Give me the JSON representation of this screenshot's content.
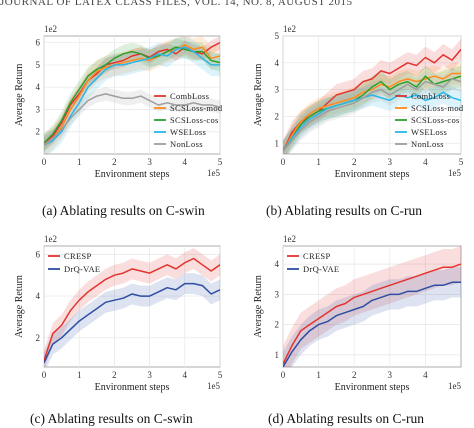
{
  "header": "JOURNAL OF LATEX CLASS FILES, VOL. 14, NO. 8, AUGUST 2015",
  "colors": {
    "CombLoss": "#e3342f",
    "SCSLoss-mod": "#ff8a1f",
    "SCSLoss-cos": "#2ca02c",
    "WSELoss": "#29b6e8",
    "NonLoss": "#9e9e9e",
    "CRESP": "#e3342f",
    "DrQ-VAE": "#2d4ea3",
    "grid": "#e6e6e6",
    "plot_bg": "#eaeaf2"
  },
  "chart_data": [
    {
      "id": "a",
      "type": "line",
      "caption": "(a)  Ablating results on C-swin",
      "xlabel": "Environment steps",
      "ylabel": "Average Return",
      "x_multiplier": "1e5",
      "y_multiplier": "1e2",
      "xlim": [
        0,
        5
      ],
      "ylim": [
        1,
        6.3
      ],
      "xticks": [
        "0",
        "1",
        "2",
        "3",
        "4",
        "5"
      ],
      "yticks": [
        "2",
        "3",
        "4",
        "5",
        "6"
      ],
      "xtick_values": [
        0,
        1,
        2,
        3,
        4,
        5
      ],
      "ytick_values": [
        2,
        3,
        4,
        5,
        6
      ],
      "legend_position": "right",
      "x": [
        0,
        0.25,
        0.5,
        0.75,
        1.0,
        1.25,
        1.5,
        1.75,
        2.0,
        2.25,
        2.5,
        2.75,
        3.0,
        3.25,
        3.5,
        3.75,
        4.0,
        4.25,
        4.5,
        4.75,
        5.0
      ],
      "series": [
        {
          "name": "CombLoss",
          "values": [
            1.5,
            1.8,
            2.4,
            3.2,
            3.7,
            4.3,
            4.6,
            5.0,
            5.1,
            5.2,
            5.4,
            5.5,
            5.35,
            5.6,
            5.7,
            5.5,
            5.8,
            5.6,
            5.5,
            5.8,
            6.0
          ],
          "band": 0.3
        },
        {
          "name": "SCSLoss-mod",
          "values": [
            1.4,
            1.7,
            2.2,
            3.0,
            3.6,
            4.3,
            4.7,
            4.9,
            5.0,
            5.1,
            5.2,
            5.3,
            5.2,
            5.4,
            5.6,
            5.7,
            5.9,
            5.7,
            5.8,
            5.3,
            5.4
          ],
          "band": 0.5
        },
        {
          "name": "SCSLoss-cos",
          "values": [
            1.5,
            1.9,
            2.5,
            3.3,
            3.9,
            4.5,
            4.8,
            5.0,
            5.3,
            5.5,
            5.6,
            5.5,
            5.3,
            5.4,
            5.6,
            5.8,
            5.7,
            5.6,
            5.6,
            5.2,
            5.1
          ],
          "band": 0.4
        },
        {
          "name": "WSELoss",
          "values": [
            1.4,
            1.6,
            2.0,
            2.7,
            3.3,
            4.0,
            4.4,
            4.8,
            5.0,
            5.0,
            5.1,
            5.2,
            5.3,
            5.5,
            5.4,
            5.7,
            5.8,
            5.6,
            5.3,
            5.0,
            5.0
          ],
          "band": 0.5
        },
        {
          "name": "NonLoss",
          "values": [
            1.4,
            1.7,
            2.1,
            2.6,
            3.0,
            3.4,
            3.6,
            3.7,
            3.6,
            3.5,
            3.5,
            3.6,
            3.4,
            3.2,
            3.3,
            3.2,
            3.2,
            3.3,
            3.2,
            3.2,
            3.1
          ],
          "band": 0.3
        }
      ]
    },
    {
      "id": "b",
      "type": "line",
      "caption": "(b)  Ablating results on C-run",
      "xlabel": "Environment steps",
      "ylabel": "Average Return",
      "x_multiplier": "1e5",
      "y_multiplier": "1e2",
      "xlim": [
        0,
        5
      ],
      "ylim": [
        0.6,
        5.0
      ],
      "xticks": [
        "0",
        "1",
        "2",
        "3",
        "4",
        "5"
      ],
      "yticks": [
        "1",
        "2",
        "3",
        "4",
        "5"
      ],
      "xtick_values": [
        0,
        1,
        2,
        3,
        4,
        5
      ],
      "ytick_values": [
        1,
        2,
        3,
        4,
        5
      ],
      "legend_position": "right",
      "x": [
        0,
        0.25,
        0.5,
        0.75,
        1.0,
        1.25,
        1.5,
        1.75,
        2.0,
        2.25,
        2.5,
        2.75,
        3.0,
        3.25,
        3.5,
        3.75,
        4.0,
        4.25,
        4.5,
        4.75,
        5.0
      ],
      "series": [
        {
          "name": "CombLoss",
          "values": [
            0.7,
            1.4,
            1.8,
            2.0,
            2.2,
            2.5,
            2.8,
            2.9,
            3.0,
            3.3,
            3.4,
            3.7,
            3.6,
            3.8,
            4.0,
            3.9,
            4.2,
            4.0,
            4.3,
            4.1,
            4.5
          ],
          "band": 0.4
        },
        {
          "name": "SCSLoss-mod",
          "values": [
            0.7,
            1.3,
            1.8,
            2.1,
            2.3,
            2.4,
            2.5,
            2.6,
            2.7,
            2.9,
            3.0,
            3.2,
            3.1,
            3.3,
            3.4,
            3.3,
            3.4,
            3.5,
            3.4,
            3.6,
            3.6
          ],
          "band": 0.4
        },
        {
          "name": "SCSLoss-cos",
          "values": [
            0.7,
            1.2,
            1.7,
            2.0,
            2.2,
            2.3,
            2.4,
            2.5,
            2.6,
            2.8,
            3.1,
            3.3,
            3.0,
            3.2,
            3.3,
            3.1,
            3.5,
            3.2,
            3.3,
            3.4,
            3.5
          ],
          "band": 0.4
        },
        {
          "name": "WSELoss",
          "values": [
            0.7,
            1.2,
            1.6,
            1.9,
            2.1,
            2.3,
            2.4,
            2.5,
            2.6,
            2.7,
            2.8,
            2.7,
            2.6,
            2.8,
            2.7,
            2.8,
            2.6,
            2.7,
            2.9,
            2.7,
            2.6
          ],
          "band": 0.4
        },
        {
          "name": "NonLoss",
          "values": [
            0.7,
            1.1,
            1.5,
            1.8,
            2.0,
            2.2,
            2.3,
            2.4,
            2.5,
            2.7,
            2.9,
            3.0,
            2.8,
            3.0,
            3.2,
            3.0,
            3.3,
            3.2,
            3.1,
            3.4,
            3.3
          ],
          "band": 0.4
        }
      ]
    },
    {
      "id": "c",
      "type": "line",
      "caption": "(c)  Ablating results on C-swin",
      "xlabel": "Environment steps",
      "ylabel": "Average Return",
      "x_multiplier": "1e5",
      "y_multiplier": "1e2",
      "xlim": [
        0,
        5
      ],
      "ylim": [
        0.6,
        6.4
      ],
      "xticks": [
        "0",
        "1",
        "2",
        "3",
        "4",
        "5"
      ],
      "yticks": [
        "2",
        "4",
        "6"
      ],
      "xtick_values": [
        0,
        1,
        2,
        3,
        4,
        5
      ],
      "ytick_values": [
        2,
        4,
        6
      ],
      "legend_position": "top-left",
      "x": [
        0,
        0.25,
        0.5,
        0.75,
        1.0,
        1.25,
        1.5,
        1.75,
        2.0,
        2.25,
        2.5,
        2.75,
        3.0,
        3.25,
        3.5,
        3.75,
        4.0,
        4.25,
        4.5,
        4.75,
        5.0
      ],
      "series": [
        {
          "name": "CRESP",
          "values": [
            0.9,
            2.2,
            2.6,
            3.3,
            3.8,
            4.2,
            4.5,
            4.8,
            5.0,
            5.1,
            5.3,
            5.2,
            5.1,
            5.3,
            5.5,
            5.3,
            5.6,
            5.8,
            5.5,
            5.2,
            5.5
          ],
          "band": 0.5
        },
        {
          "name": "DrQ-VAE",
          "values": [
            0.8,
            1.7,
            2.0,
            2.4,
            2.8,
            3.1,
            3.4,
            3.7,
            3.8,
            3.9,
            4.1,
            4.0,
            4.0,
            4.2,
            4.4,
            4.3,
            4.6,
            4.6,
            4.5,
            4.1,
            4.3
          ],
          "band": 0.5
        }
      ]
    },
    {
      "id": "d",
      "type": "line",
      "caption": "(d)  Ablating results on C-run",
      "xlabel": "Environment steps",
      "ylabel": "Average Return",
      "x_multiplier": "1e5",
      "y_multiplier": "1e2",
      "xlim": [
        0,
        5
      ],
      "ylim": [
        0.6,
        4.6
      ],
      "xticks": [
        "0",
        "1",
        "2",
        "3",
        "4"
      ],
      "yticks": [
        "1",
        "2",
        "3",
        "4"
      ],
      "xtick_values": [
        0,
        1,
        2,
        3,
        4
      ],
      "ytick_values": [
        1,
        2,
        3,
        4
      ],
      "legend_position": "top-left",
      "x": [
        0,
        0.25,
        0.5,
        0.75,
        1.0,
        1.25,
        1.5,
        1.75,
        2.0,
        2.25,
        2.5,
        2.75,
        3.0,
        3.25,
        3.5,
        3.75,
        4.0,
        4.25,
        4.5,
        4.75,
        5.0
      ],
      "series": [
        {
          "name": "CRESP",
          "values": [
            0.7,
            1.3,
            1.8,
            2.0,
            2.2,
            2.4,
            2.6,
            2.7,
            2.9,
            3.0,
            3.1,
            3.2,
            3.3,
            3.4,
            3.5,
            3.6,
            3.7,
            3.8,
            3.9,
            3.9,
            4.0
          ],
          "band": 0.6
        },
        {
          "name": "DrQ-VAE",
          "values": [
            0.6,
            1.1,
            1.5,
            1.8,
            2.0,
            2.1,
            2.3,
            2.4,
            2.5,
            2.6,
            2.8,
            2.9,
            3.0,
            3.0,
            3.1,
            3.1,
            3.2,
            3.3,
            3.3,
            3.4,
            3.4
          ],
          "band": 0.5
        }
      ]
    }
  ]
}
